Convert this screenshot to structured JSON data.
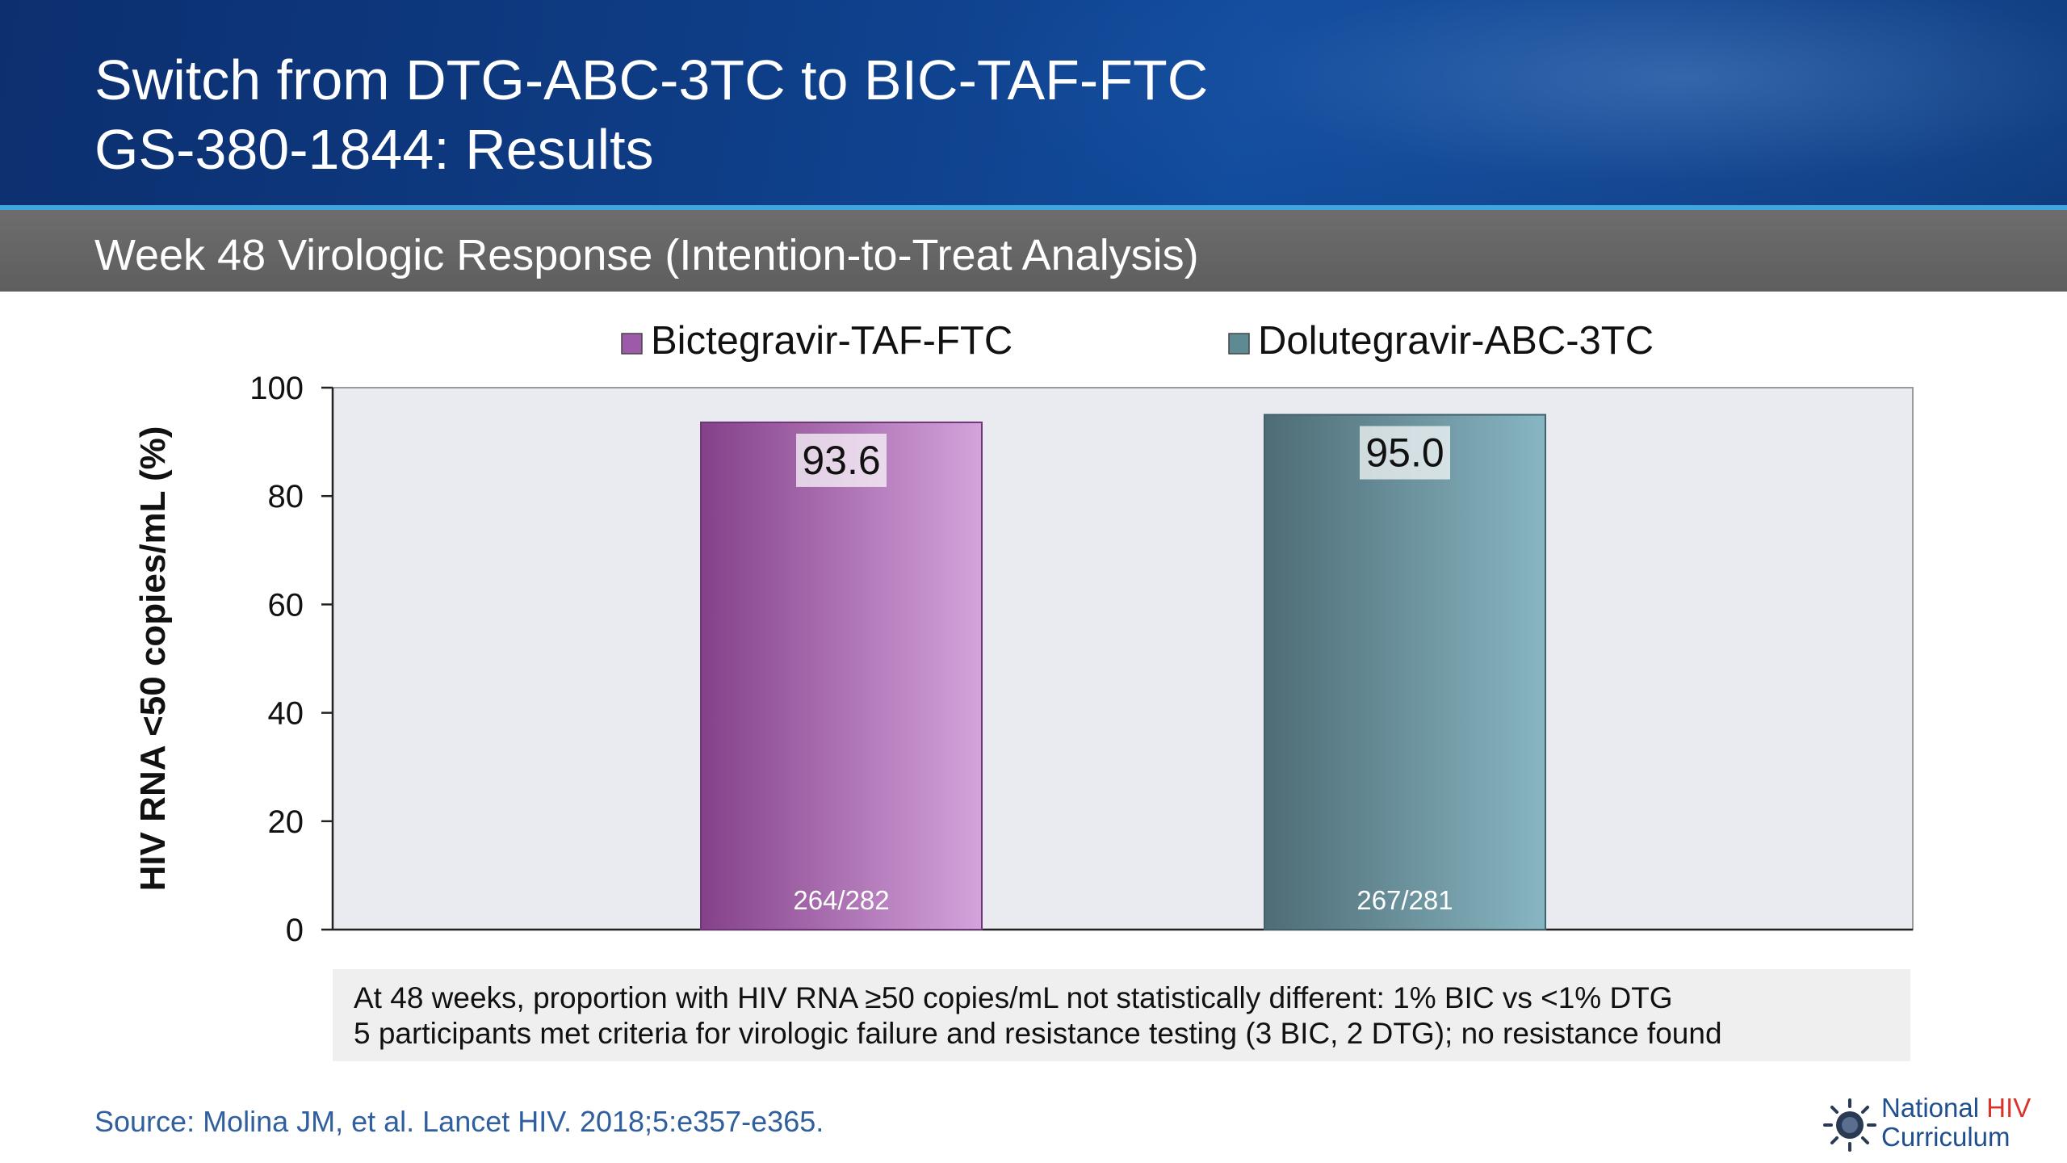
{
  "header": {
    "title_line1": "Switch from DTG-ABC-3TC to BIC-TAF-FTC",
    "title_line2": "GS-380-1844: Results"
  },
  "subheader": {
    "title": "Week 48 Virologic Response (Intention-to-Treat Analysis)"
  },
  "chart_data": {
    "type": "bar",
    "title": "",
    "xlabel": "",
    "ylabel": "HIV RNA <50 copies/mL (%)",
    "ylim": [
      0,
      100
    ],
    "yticks": [
      0,
      20,
      40,
      60,
      80,
      100
    ],
    "ytick_labels": [
      "0",
      "20",
      "40",
      "60",
      "80",
      "100"
    ],
    "grid": false,
    "legend_position": "top",
    "categories": [
      "Bictegravir-TAF-FTC",
      "Dolutegravir-ABC-3TC"
    ],
    "values": [
      93.6,
      95.0
    ],
    "value_labels": [
      "93.6",
      "95.0"
    ],
    "n_labels": [
      "264/282",
      "267/281"
    ],
    "series": [
      {
        "name": "Bictegravir-TAF-FTC",
        "color": "#9c5aa8"
      },
      {
        "name": "Dolutegravir-ABC-3TC",
        "color": "#5e8a93"
      }
    ],
    "plot_background": "#e9ebf0"
  },
  "notes": {
    "line1": "At 48 weeks, proportion with HIV RNA ≥50 copies/mL not statistically different: 1% BIC vs <1% DTG",
    "line2": "5 participants met criteria for virologic failure and resistance testing (3 BIC, 2 DTG); no resistance found"
  },
  "source": "Source: Molina JM, et al. Lancet HIV. 2018;5:e357-e365.",
  "logo": {
    "icon": "national-hiv-curriculum-seal-icon",
    "word1": "National",
    "word2": "HIV",
    "word3": "Curriculum"
  },
  "colors": {
    "header_bg": "#0e3d86",
    "accent_rule": "#3fa6e0",
    "subheader_bg": "#666666",
    "source_text": "#2f5f9e",
    "logo_accent": "#d9342b"
  }
}
